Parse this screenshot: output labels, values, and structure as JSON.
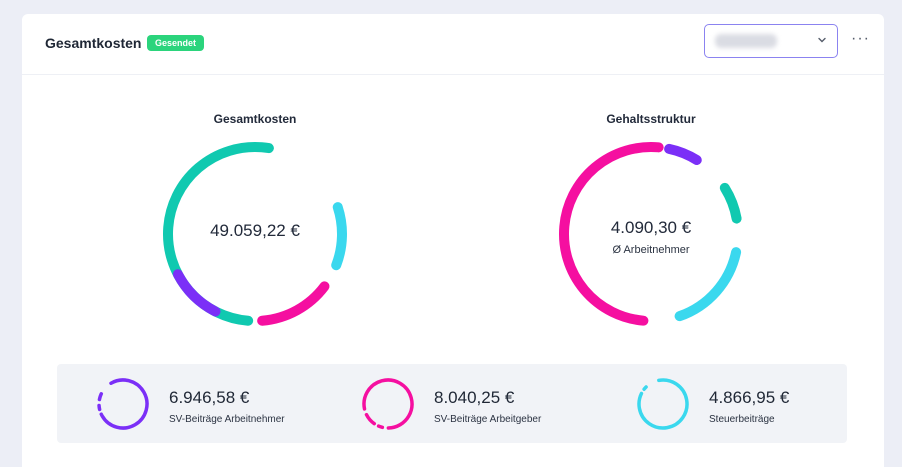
{
  "header": {
    "title": "Gesamtkosten",
    "badge": "Gesendet",
    "more_label": "···"
  },
  "left_chart": {
    "title": "Gesamtkosten",
    "center_value": "49.059,22 €"
  },
  "right_chart": {
    "title": "Gehaltsstruktur",
    "center_value": "4.090,30 €",
    "center_sub": "Ø Arbeitnehmer"
  },
  "legend": [
    {
      "value": "6.946,58 €",
      "label": "SV-Beiträge Arbeitnehmer",
      "color": "#7b2ff7"
    },
    {
      "value": "8.040,25 €",
      "label": "SV-Beiträge Arbeitgeber",
      "color": "#f50fa0"
    },
    {
      "value": "4.866,95 €",
      "label": "Steuerbeiträge",
      "color": "#3ad8ee"
    }
  ],
  "colors": {
    "teal": "#10c9b0",
    "cyan": "#3ad8ee",
    "magenta": "#f50fa0",
    "purple": "#7b2ff7",
    "badge": "#2bd47c",
    "select_border": "#8b83f0"
  },
  "icons": {
    "select": "chevron-down-icon",
    "menu": "more-horizontal-icon"
  }
}
